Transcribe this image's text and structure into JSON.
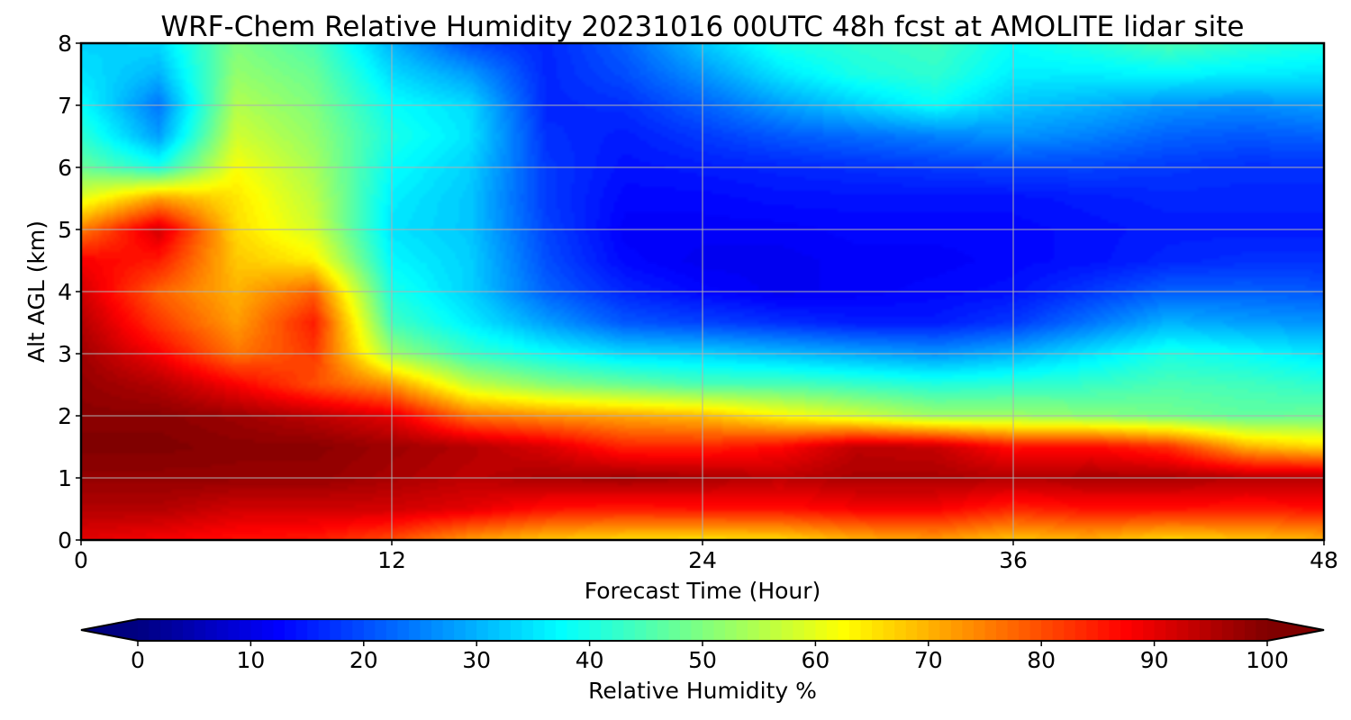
{
  "chart_data": {
    "type": "heatmap",
    "title": "WRF-Chem Relative Humidity 20231016 00UTC 48h fcst at AMOLITE lidar site",
    "xlabel": "Forecast Time (Hour)",
    "ylabel": "Alt AGL (km)",
    "xlim": [
      0,
      48
    ],
    "ylim": [
      0,
      8
    ],
    "x_ticks": [
      0,
      12,
      24,
      36,
      48
    ],
    "y_ticks": [
      0,
      1,
      2,
      3,
      4,
      5,
      6,
      7,
      8
    ],
    "grid": true,
    "colormap": "jet",
    "colorbar": {
      "label": "Relative Humidity %",
      "range": [
        0,
        100
      ],
      "ticks": [
        0,
        10,
        20,
        30,
        40,
        50,
        60,
        70,
        80,
        90,
        100
      ],
      "extend": "both"
    },
    "x": [
      0,
      3,
      6,
      9,
      12,
      15,
      18,
      21,
      24,
      27,
      30,
      33,
      36,
      39,
      42,
      45,
      48
    ],
    "y": [
      0,
      0.5,
      1,
      1.5,
      2,
      2.5,
      3,
      3.5,
      4,
      4.5,
      5,
      5.5,
      6,
      6.5,
      7,
      7.5,
      8
    ],
    "z": [
      [
        90,
        88,
        86,
        85,
        80,
        72,
        68,
        66,
        65,
        66,
        70,
        72,
        68,
        70,
        66,
        68,
        70
      ],
      [
        95,
        95,
        92,
        92,
        92,
        90,
        86,
        85,
        86,
        86,
        88,
        88,
        84,
        86,
        86,
        85,
        86
      ],
      [
        98,
        98,
        98,
        98,
        96,
        94,
        96,
        97,
        96,
        94,
        96,
        96,
        95,
        96,
        96,
        95,
        95
      ],
      [
        100,
        100,
        99,
        99,
        97,
        95,
        91,
        84,
        84,
        87,
        94,
        93,
        86,
        87,
        83,
        70,
        66
      ],
      [
        99,
        99,
        97,
        94,
        90,
        76,
        73,
        71,
        69,
        63,
        58,
        53,
        53,
        51,
        49,
        47,
        48
      ],
      [
        98,
        95,
        88,
        80,
        73,
        57,
        51,
        48,
        45,
        45,
        43,
        41,
        42,
        43,
        45,
        44,
        42
      ],
      [
        97,
        88,
        76,
        82,
        53,
        43,
        38,
        34,
        33,
        31,
        29,
        27,
        30,
        35,
        40,
        38,
        35
      ],
      [
        95,
        82,
        72,
        85,
        44,
        36,
        28,
        21,
        19,
        17,
        15,
        15,
        18,
        24,
        30,
        28,
        27
      ],
      [
        92,
        78,
        70,
        78,
        40,
        33,
        22,
        16,
        13,
        11,
        12,
        13,
        14,
        18,
        22,
        22,
        21
      ],
      [
        88,
        85,
        68,
        64,
        37,
        33,
        20,
        13,
        11,
        11,
        12,
        12,
        13,
        14,
        16,
        17,
        17
      ],
      [
        75,
        92,
        66,
        58,
        35,
        32,
        19,
        12,
        12,
        12,
        13,
        13,
        13,
        14,
        15,
        15,
        15
      ],
      [
        60,
        72,
        65,
        56,
        36,
        32,
        18,
        13,
        13,
        14,
        14,
        14,
        14,
        15,
        16,
        16,
        16
      ],
      [
        48,
        40,
        62,
        54,
        38,
        33,
        18,
        14,
        15,
        16,
        17,
        18,
        19,
        19,
        18,
        17,
        17
      ],
      [
        42,
        28,
        58,
        52,
        40,
        35,
        17,
        15,
        18,
        21,
        23,
        25,
        27,
        25,
        22,
        21,
        22
      ],
      [
        38,
        24,
        55,
        50,
        38,
        34,
        16,
        17,
        22,
        28,
        33,
        38,
        32,
        30,
        27,
        26,
        28
      ],
      [
        35,
        30,
        52,
        48,
        34,
        28,
        16,
        20,
        27,
        35,
        40,
        42,
        36,
        36,
        37,
        36,
        35
      ],
      [
        33,
        34,
        50,
        45,
        30,
        20,
        16,
        22,
        32,
        40,
        42,
        44,
        38,
        41,
        45,
        42,
        40
      ]
    ]
  }
}
